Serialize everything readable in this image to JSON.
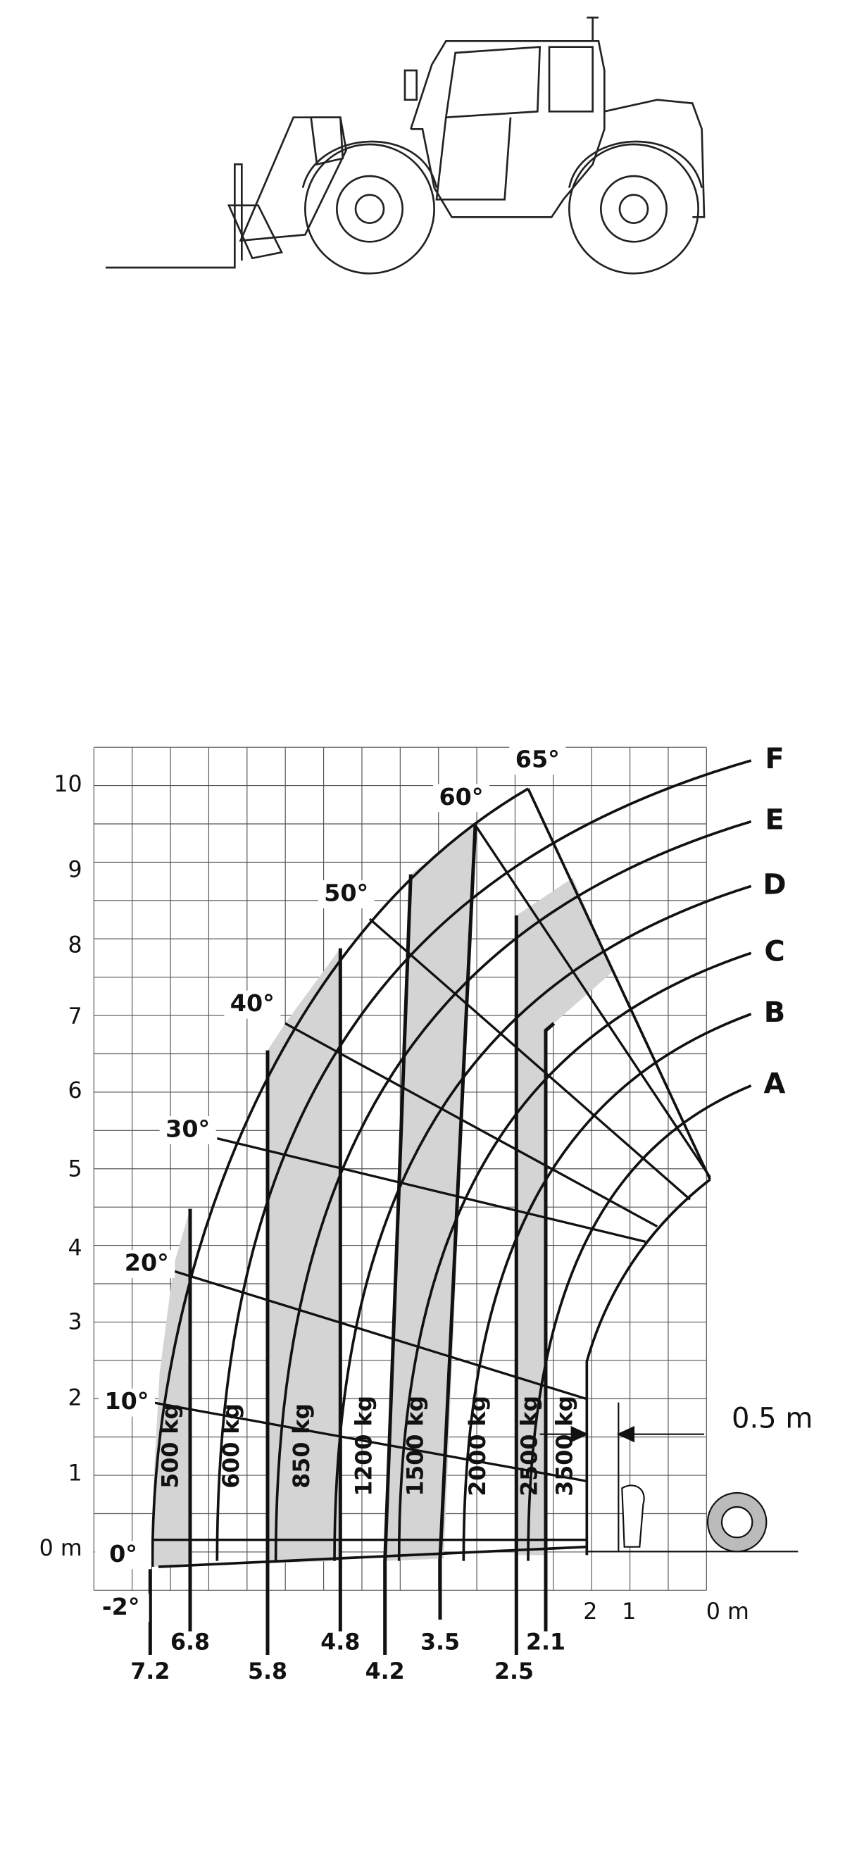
{
  "load_chart": {
    "y_axis_labels": [
      "10",
      "9",
      "8",
      "7",
      "6",
      "5",
      "4",
      "3",
      "2",
      "1",
      "0 m"
    ],
    "x_axis_labels": [
      "2",
      "1",
      "0 m"
    ],
    "angle_labels": [
      "65°",
      "60°",
      "50°",
      "40°",
      "30°",
      "20°",
      "10°",
      "0°",
      "-2°"
    ],
    "curve_labels": [
      "F",
      "E",
      "D",
      "C",
      "B",
      "A"
    ],
    "load_labels": [
      "500 kg",
      "600 kg",
      "850 kg",
      "1200 kg",
      "1500 kg",
      "2000 kg",
      "2500 kg",
      "3500 kg"
    ],
    "distance_labels": [
      "6.8",
      "4.8",
      "3.5",
      "2.1",
      "7.2",
      "5.8",
      "4.2",
      "2.5"
    ],
    "dimension_label": "0.5 m"
  }
}
